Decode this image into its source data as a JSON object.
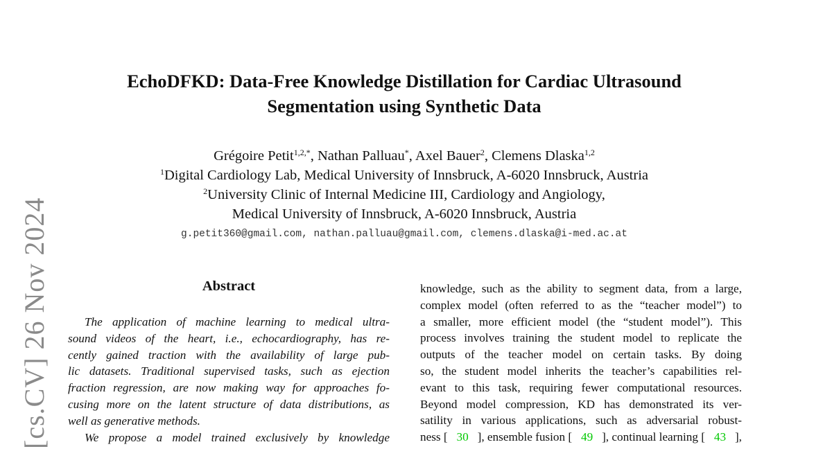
{
  "arxiv_stamp": "[cs.CV]  26 Nov 2024",
  "title_lines": [
    "EchoDFKD: Data-Free Knowledge Distillation for Cardiac Ultrasound",
    "Segmentation using Synthetic Data"
  ],
  "authors": {
    "a1": "Grégoire Petit",
    "a1_sup": "1,2,*",
    "a2": ", Nathan Palluau",
    "a2_sup": "*",
    "a3": ", Axel Bauer",
    "a3_sup": "2",
    "a4": ", Clemens Dlaska",
    "a4_sup": "1,2",
    "aff1_sup": "1",
    "aff1": "Digital Cardiology Lab, Medical University of Innsbruck, A-6020 Innsbruck, Austria",
    "aff2_sup": "2",
    "aff2": "University Clinic of Internal Medicine III, Cardiology and Angiology,",
    "aff2b": "Medical University of Innsbruck, A-6020 Innsbruck, Austria",
    "emails": "g.petit360@gmail.com, nathan.palluau@gmail.com, clemens.dlaska@i-med.ac.at"
  },
  "abstract_heading": "Abstract",
  "left_lines": [
    "The application of machine learning to medical ultra-",
    "sound videos of the heart, i.e., echocardiography, has re-",
    "cently gained traction with the availability of large pub-",
    "lic datasets. Traditional supervised tasks, such as ejection",
    "fraction regression, are now making way for approaches fo-",
    "cusing more on the latent structure of data distributions, as",
    "well as generative methods.",
    "We propose a model trained exclusively by knowledge"
  ],
  "right_lines": [
    "knowledge, such as the ability to segment data, from a large,",
    "complex model (often referred to as the “teacher model”) to",
    "a smaller, more efficient model (the “student model”). This",
    "process involves training the student model to replicate the",
    "outputs of the teacher model on certain tasks.  By doing",
    "so, the student model inherits the teacher’s capabilities rel-",
    "evant to this task, requiring fewer computational resources.",
    "Beyond model compression, KD has demonstrated its ver-",
    "satility in various applications, such as adversarial robust-"
  ],
  "right_cite_line": {
    "t1": "ness [",
    "c1": "30",
    "t2": "], ensemble fusion [",
    "c2": "49",
    "t3": "], continual learning [",
    "c3": "43",
    "t4": "],"
  },
  "colors": {
    "citation": "#00c800",
    "stamp": "#8a8a8a"
  }
}
